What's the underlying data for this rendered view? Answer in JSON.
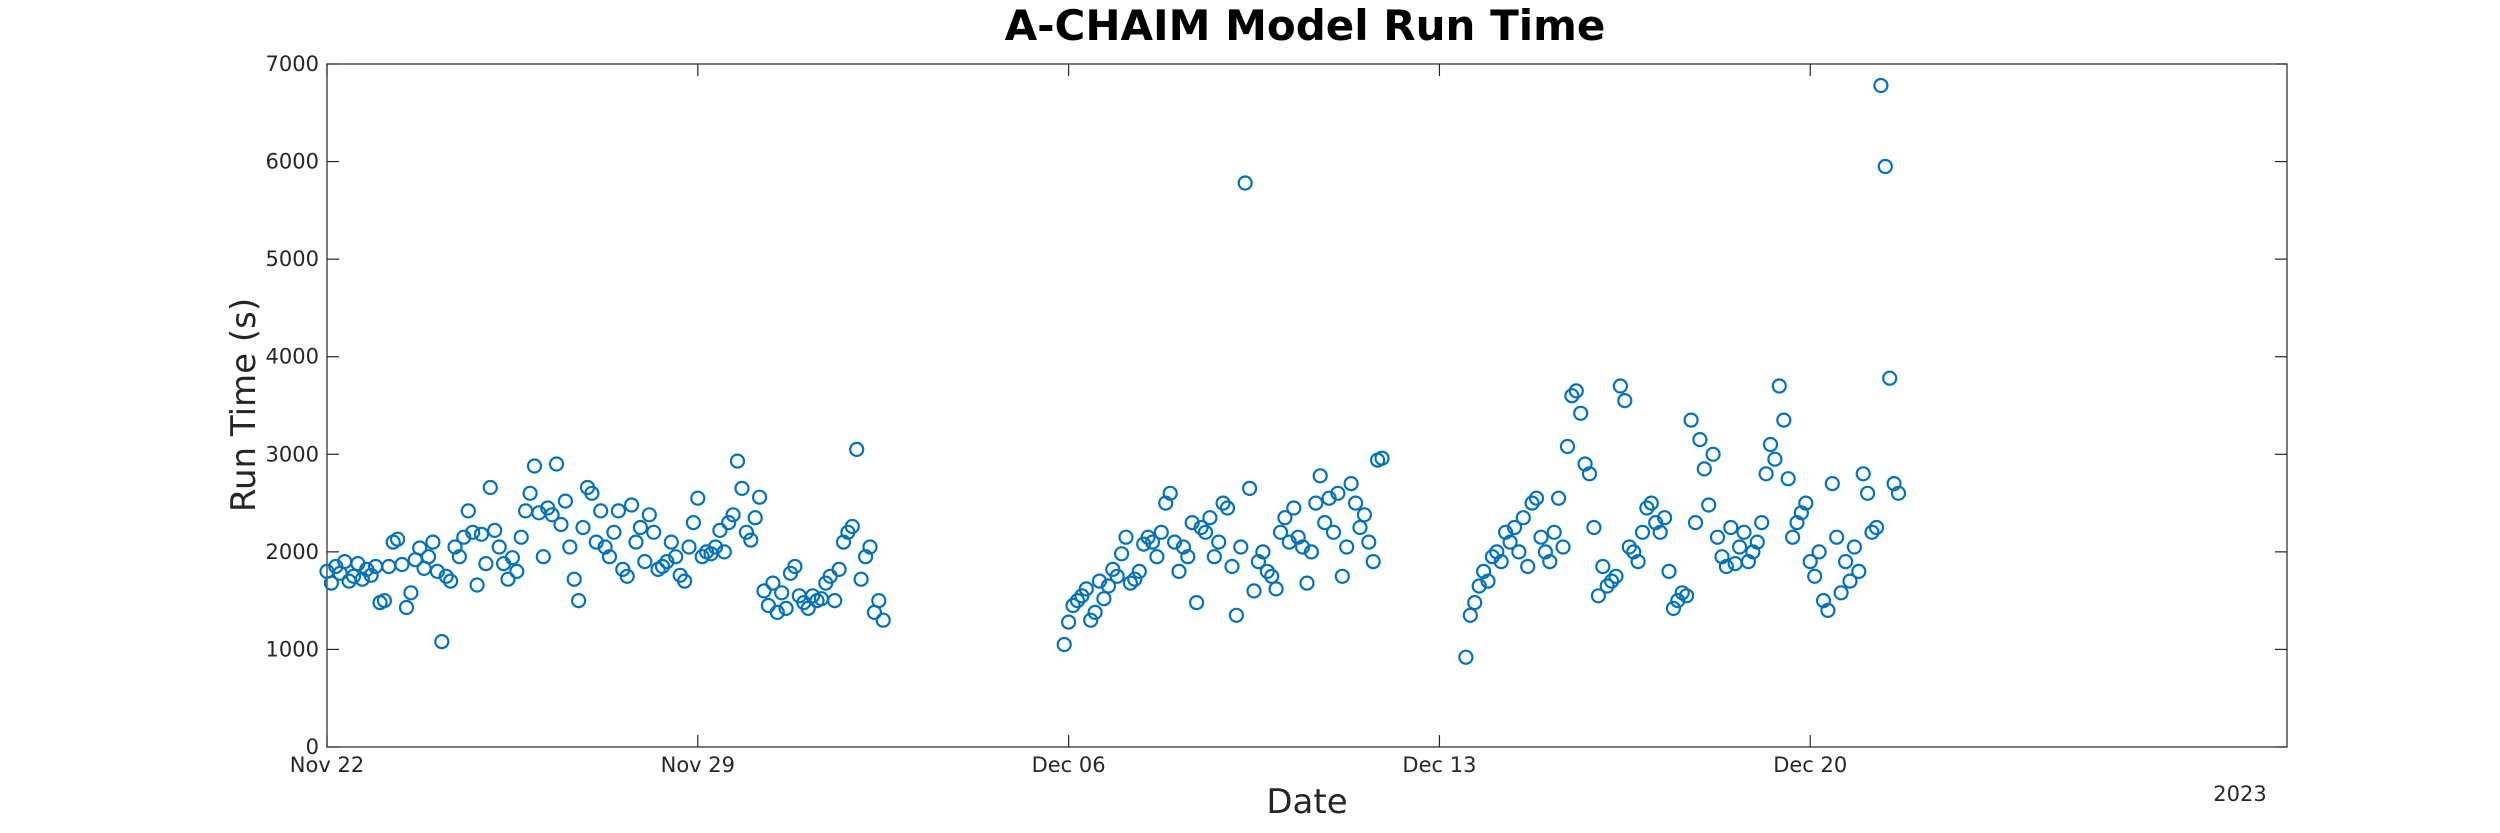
{
  "chart_data": {
    "type": "scatter",
    "title": "A-CHAIM Model Run Time",
    "xlabel": "Date",
    "ylabel": "Run Time (s)",
    "year_label": "2023",
    "x_range": [
      "2022-11-22",
      "2022-12-29"
    ],
    "ylim": [
      0,
      7000
    ],
    "y_ticks": [
      0,
      1000,
      2000,
      3000,
      4000,
      5000,
      6000,
      7000
    ],
    "x_ticks": [
      {
        "date": "2022-11-22",
        "label": "Nov 22"
      },
      {
        "date": "2022-11-29",
        "label": "Nov 29"
      },
      {
        "date": "2022-12-06",
        "label": "Dec 06"
      },
      {
        "date": "2022-12-13",
        "label": "Dec 13"
      },
      {
        "date": "2022-12-20",
        "label": "Dec 20"
      }
    ],
    "grid": false,
    "marker": "open circle",
    "color": "#0072BD",
    "points": [
      [
        "2022-11-22 00:00",
        1800
      ],
      [
        "2022-11-22 02:00",
        1680
      ],
      [
        "2022-11-22 04:00",
        1850
      ],
      [
        "2022-11-22 06:00",
        1780
      ],
      [
        "2022-11-22 08:00",
        1900
      ],
      [
        "2022-11-22 10:00",
        1700
      ],
      [
        "2022-11-22 12:00",
        1750
      ],
      [
        "2022-11-22 14:00",
        1880
      ],
      [
        "2022-11-22 16:00",
        1720
      ],
      [
        "2022-11-22 18:00",
        1820
      ],
      [
        "2022-11-22 20:00",
        1760
      ],
      [
        "2022-11-22 22:00",
        1850
      ],
      [
        "2022-11-23 00:00",
        1480
      ],
      [
        "2022-11-23 02:00",
        1500
      ],
      [
        "2022-11-23 04:00",
        1850
      ],
      [
        "2022-11-23 06:00",
        2100
      ],
      [
        "2022-11-23 08:00",
        2130
      ],
      [
        "2022-11-23 10:00",
        1870
      ],
      [
        "2022-11-23 12:00",
        1430
      ],
      [
        "2022-11-23 14:00",
        1580
      ],
      [
        "2022-11-23 16:00",
        1920
      ],
      [
        "2022-11-23 18:00",
        2040
      ],
      [
        "2022-11-23 20:00",
        1830
      ],
      [
        "2022-11-23 22:00",
        1950
      ],
      [
        "2022-11-24 00:00",
        2100
      ],
      [
        "2022-11-24 02:00",
        1800
      ],
      [
        "2022-11-24 04:00",
        1080
      ],
      [
        "2022-11-24 06:00",
        1750
      ],
      [
        "2022-11-24 08:00",
        1700
      ],
      [
        "2022-11-24 10:00",
        2050
      ],
      [
        "2022-11-24 12:00",
        1950
      ],
      [
        "2022-11-24 14:00",
        2150
      ],
      [
        "2022-11-24 16:00",
        2420
      ],
      [
        "2022-11-24 18:00",
        2200
      ],
      [
        "2022-11-24 20:00",
        1660
      ],
      [
        "2022-11-24 22:00",
        2180
      ],
      [
        "2022-11-25 00:00",
        1880
      ],
      [
        "2022-11-25 02:00",
        2660
      ],
      [
        "2022-11-25 04:00",
        2220
      ],
      [
        "2022-11-25 06:00",
        2050
      ],
      [
        "2022-11-25 08:00",
        1880
      ],
      [
        "2022-11-25 10:00",
        1720
      ],
      [
        "2022-11-25 12:00",
        1940
      ],
      [
        "2022-11-25 14:00",
        1800
      ],
      [
        "2022-11-25 16:00",
        2150
      ],
      [
        "2022-11-25 18:00",
        2420
      ],
      [
        "2022-11-25 20:00",
        2600
      ],
      [
        "2022-11-25 22:00",
        2880
      ],
      [
        "2022-11-26 00:00",
        2400
      ],
      [
        "2022-11-26 02:00",
        1950
      ],
      [
        "2022-11-26 04:00",
        2450
      ],
      [
        "2022-11-26 06:00",
        2380
      ],
      [
        "2022-11-26 08:00",
        2900
      ],
      [
        "2022-11-26 10:00",
        2280
      ],
      [
        "2022-11-26 12:00",
        2520
      ],
      [
        "2022-11-26 14:00",
        2050
      ],
      [
        "2022-11-26 16:00",
        1720
      ],
      [
        "2022-11-26 18:00",
        1500
      ],
      [
        "2022-11-26 20:00",
        2250
      ],
      [
        "2022-11-26 22:00",
        2660
      ],
      [
        "2022-11-27 00:00",
        2600
      ],
      [
        "2022-11-27 02:00",
        2100
      ],
      [
        "2022-11-27 04:00",
        2420
      ],
      [
        "2022-11-27 06:00",
        2050
      ],
      [
        "2022-11-27 08:00",
        1950
      ],
      [
        "2022-11-27 10:00",
        2200
      ],
      [
        "2022-11-27 12:00",
        2420
      ],
      [
        "2022-11-27 14:00",
        1820
      ],
      [
        "2022-11-27 16:00",
        1750
      ],
      [
        "2022-11-27 18:00",
        2480
      ],
      [
        "2022-11-27 20:00",
        2100
      ],
      [
        "2022-11-27 22:00",
        2250
      ],
      [
        "2022-11-28 00:00",
        1900
      ],
      [
        "2022-11-28 02:00",
        2380
      ],
      [
        "2022-11-28 04:00",
        2200
      ],
      [
        "2022-11-28 06:00",
        1820
      ],
      [
        "2022-11-28 08:00",
        1850
      ],
      [
        "2022-11-28 10:00",
        1900
      ],
      [
        "2022-11-28 12:00",
        2100
      ],
      [
        "2022-11-28 14:00",
        1950
      ],
      [
        "2022-11-28 16:00",
        1760
      ],
      [
        "2022-11-28 18:00",
        1700
      ],
      [
        "2022-11-28 20:00",
        2050
      ],
      [
        "2022-11-28 22:00",
        2300
      ],
      [
        "2022-11-29 00:00",
        2550
      ],
      [
        "2022-11-29 02:00",
        1950
      ],
      [
        "2022-11-29 04:00",
        2000
      ],
      [
        "2022-11-29 06:00",
        1980
      ],
      [
        "2022-11-29 08:00",
        2050
      ],
      [
        "2022-11-29 10:00",
        2220
      ],
      [
        "2022-11-29 12:00",
        2000
      ],
      [
        "2022-11-29 14:00",
        2300
      ],
      [
        "2022-11-29 16:00",
        2380
      ],
      [
        "2022-11-29 18:00",
        2930
      ],
      [
        "2022-11-29 20:00",
        2650
      ],
      [
        "2022-11-29 22:00",
        2200
      ],
      [
        "2022-11-30 00:00",
        2120
      ],
      [
        "2022-11-30 02:00",
        2350
      ],
      [
        "2022-11-30 04:00",
        2560
      ],
      [
        "2022-11-30 06:00",
        1600
      ],
      [
        "2022-11-30 08:00",
        1450
      ],
      [
        "2022-11-30 10:00",
        1680
      ],
      [
        "2022-11-30 12:00",
        1380
      ],
      [
        "2022-11-30 14:00",
        1580
      ],
      [
        "2022-11-30 16:00",
        1420
      ],
      [
        "2022-11-30 18:00",
        1780
      ],
      [
        "2022-11-30 20:00",
        1850
      ],
      [
        "2022-11-30 22:00",
        1550
      ],
      [
        "2022-12-01 00:00",
        1480
      ],
      [
        "2022-12-01 02:00",
        1420
      ],
      [
        "2022-12-01 04:00",
        1550
      ],
      [
        "2022-12-01 06:00",
        1500
      ],
      [
        "2022-12-01 08:00",
        1520
      ],
      [
        "2022-12-01 10:00",
        1680
      ],
      [
        "2022-12-01 12:00",
        1750
      ],
      [
        "2022-12-01 14:00",
        1500
      ],
      [
        "2022-12-01 16:00",
        1820
      ],
      [
        "2022-12-01 18:00",
        2100
      ],
      [
        "2022-12-01 20:00",
        2200
      ],
      [
        "2022-12-01 22:00",
        2260
      ],
      [
        "2022-12-02 00:00",
        3050
      ],
      [
        "2022-12-02 02:00",
        1720
      ],
      [
        "2022-12-02 04:00",
        1950
      ],
      [
        "2022-12-02 06:00",
        2050
      ],
      [
        "2022-12-02 08:00",
        1380
      ],
      [
        "2022-12-02 10:00",
        1500
      ],
      [
        "2022-12-02 12:00",
        1300
      ],
      [
        "2022-12-05 22:00",
        1050
      ],
      [
        "2022-12-06 00:00",
        1280
      ],
      [
        "2022-12-06 02:00",
        1450
      ],
      [
        "2022-12-06 04:00",
        1500
      ],
      [
        "2022-12-06 06:00",
        1550
      ],
      [
        "2022-12-06 08:00",
        1620
      ],
      [
        "2022-12-06 10:00",
        1300
      ],
      [
        "2022-12-06 12:00",
        1380
      ],
      [
        "2022-12-06 14:00",
        1700
      ],
      [
        "2022-12-06 16:00",
        1520
      ],
      [
        "2022-12-06 18:00",
        1650
      ],
      [
        "2022-12-06 20:00",
        1820
      ],
      [
        "2022-12-06 22:00",
        1750
      ],
      [
        "2022-12-07 00:00",
        1980
      ],
      [
        "2022-12-07 02:00",
        2150
      ],
      [
        "2022-12-07 04:00",
        1680
      ],
      [
        "2022-12-07 06:00",
        1720
      ],
      [
        "2022-12-07 08:00",
        1800
      ],
      [
        "2022-12-07 10:00",
        2080
      ],
      [
        "2022-12-07 12:00",
        2150
      ],
      [
        "2022-12-07 14:00",
        2100
      ],
      [
        "2022-12-07 16:00",
        1950
      ],
      [
        "2022-12-07 18:00",
        2200
      ],
      [
        "2022-12-07 20:00",
        2500
      ],
      [
        "2022-12-07 22:00",
        2600
      ],
      [
        "2022-12-08 00:00",
        2100
      ],
      [
        "2022-12-08 02:00",
        1800
      ],
      [
        "2022-12-08 04:00",
        2050
      ],
      [
        "2022-12-08 06:00",
        1950
      ],
      [
        "2022-12-08 08:00",
        2300
      ],
      [
        "2022-12-08 10:00",
        1480
      ],
      [
        "2022-12-08 12:00",
        2250
      ],
      [
        "2022-12-08 14:00",
        2200
      ],
      [
        "2022-12-08 16:00",
        2350
      ],
      [
        "2022-12-08 18:00",
        1950
      ],
      [
        "2022-12-08 20:00",
        2100
      ],
      [
        "2022-12-08 22:00",
        2500
      ],
      [
        "2022-12-09 00:00",
        2450
      ],
      [
        "2022-12-09 02:00",
        1850
      ],
      [
        "2022-12-09 04:00",
        1350
      ],
      [
        "2022-12-09 06:00",
        2050
      ],
      [
        "2022-12-09 08:00",
        5780
      ],
      [
        "2022-12-09 10:00",
        2650
      ],
      [
        "2022-12-09 12:00",
        1600
      ],
      [
        "2022-12-09 14:00",
        1900
      ],
      [
        "2022-12-09 16:00",
        2000
      ],
      [
        "2022-12-09 18:00",
        1800
      ],
      [
        "2022-12-09 20:00",
        1750
      ],
      [
        "2022-12-09 22:00",
        1620
      ],
      [
        "2022-12-10 00:00",
        2200
      ],
      [
        "2022-12-10 02:00",
        2350
      ],
      [
        "2022-12-10 04:00",
        2100
      ],
      [
        "2022-12-10 06:00",
        2450
      ],
      [
        "2022-12-10 08:00",
        2150
      ],
      [
        "2022-12-10 10:00",
        2050
      ],
      [
        "2022-12-10 12:00",
        1680
      ],
      [
        "2022-12-10 14:00",
        2000
      ],
      [
        "2022-12-10 16:00",
        2500
      ],
      [
        "2022-12-10 18:00",
        2780
      ],
      [
        "2022-12-10 20:00",
        2300
      ],
      [
        "2022-12-10 22:00",
        2550
      ],
      [
        "2022-12-11 00:00",
        2200
      ],
      [
        "2022-12-11 02:00",
        2600
      ],
      [
        "2022-12-11 04:00",
        1750
      ],
      [
        "2022-12-11 06:00",
        2050
      ],
      [
        "2022-12-11 08:00",
        2700
      ],
      [
        "2022-12-11 10:00",
        2500
      ],
      [
        "2022-12-11 12:00",
        2250
      ],
      [
        "2022-12-11 14:00",
        2380
      ],
      [
        "2022-12-11 16:00",
        2100
      ],
      [
        "2022-12-11 18:00",
        1900
      ],
      [
        "2022-12-11 20:00",
        2940
      ],
      [
        "2022-12-11 22:00",
        2960
      ],
      [
        "2022-12-13 12:00",
        920
      ],
      [
        "2022-12-13 14:00",
        1350
      ],
      [
        "2022-12-13 16:00",
        1480
      ],
      [
        "2022-12-13 18:00",
        1650
      ],
      [
        "2022-12-13 20:00",
        1800
      ],
      [
        "2022-12-13 22:00",
        1700
      ],
      [
        "2022-12-14 00:00",
        1950
      ],
      [
        "2022-12-14 02:00",
        2000
      ],
      [
        "2022-12-14 04:00",
        1900
      ],
      [
        "2022-12-14 06:00",
        2200
      ],
      [
        "2022-12-14 08:00",
        2100
      ],
      [
        "2022-12-14 10:00",
        2250
      ],
      [
        "2022-12-14 12:00",
        2000
      ],
      [
        "2022-12-14 14:00",
        2350
      ],
      [
        "2022-12-14 16:00",
        1850
      ],
      [
        "2022-12-14 18:00",
        2500
      ],
      [
        "2022-12-14 20:00",
        2550
      ],
      [
        "2022-12-14 22:00",
        2150
      ],
      [
        "2022-12-15 00:00",
        2000
      ],
      [
        "2022-12-15 02:00",
        1900
      ],
      [
        "2022-12-15 04:00",
        2200
      ],
      [
        "2022-12-15 06:00",
        2550
      ],
      [
        "2022-12-15 08:00",
        2050
      ],
      [
        "2022-12-15 10:00",
        3080
      ],
      [
        "2022-12-15 12:00",
        3600
      ],
      [
        "2022-12-15 14:00",
        3650
      ],
      [
        "2022-12-15 16:00",
        3420
      ],
      [
        "2022-12-15 18:00",
        2900
      ],
      [
        "2022-12-15 20:00",
        2800
      ],
      [
        "2022-12-15 22:00",
        2250
      ],
      [
        "2022-12-16 00:00",
        1550
      ],
      [
        "2022-12-16 02:00",
        1850
      ],
      [
        "2022-12-16 04:00",
        1650
      ],
      [
        "2022-12-16 06:00",
        1700
      ],
      [
        "2022-12-16 08:00",
        1750
      ],
      [
        "2022-12-16 10:00",
        3700
      ],
      [
        "2022-12-16 12:00",
        3550
      ],
      [
        "2022-12-16 14:00",
        2050
      ],
      [
        "2022-12-16 16:00",
        2000
      ],
      [
        "2022-12-16 18:00",
        1900
      ],
      [
        "2022-12-16 20:00",
        2200
      ],
      [
        "2022-12-16 22:00",
        2450
      ],
      [
        "2022-12-17 00:00",
        2500
      ],
      [
        "2022-12-17 02:00",
        2300
      ],
      [
        "2022-12-17 04:00",
        2200
      ],
      [
        "2022-12-17 06:00",
        2350
      ],
      [
        "2022-12-17 08:00",
        1800
      ],
      [
        "2022-12-17 10:00",
        1420
      ],
      [
        "2022-12-17 12:00",
        1500
      ],
      [
        "2022-12-17 14:00",
        1580
      ],
      [
        "2022-12-17 16:00",
        1550
      ],
      [
        "2022-12-17 18:00",
        3350
      ],
      [
        "2022-12-17 20:00",
        2300
      ],
      [
        "2022-12-17 22:00",
        3150
      ],
      [
        "2022-12-18 00:00",
        2850
      ],
      [
        "2022-12-18 02:00",
        2480
      ],
      [
        "2022-12-18 04:00",
        3000
      ],
      [
        "2022-12-18 06:00",
        2150
      ],
      [
        "2022-12-18 08:00",
        1950
      ],
      [
        "2022-12-18 10:00",
        1850
      ],
      [
        "2022-12-18 12:00",
        2250
      ],
      [
        "2022-12-18 14:00",
        1880
      ],
      [
        "2022-12-18 16:00",
        2050
      ],
      [
        "2022-12-18 18:00",
        2200
      ],
      [
        "2022-12-18 20:00",
        1900
      ],
      [
        "2022-12-18 22:00",
        2000
      ],
      [
        "2022-12-19 00:00",
        2100
      ],
      [
        "2022-12-19 02:00",
        2300
      ],
      [
        "2022-12-19 04:00",
        2800
      ],
      [
        "2022-12-19 06:00",
        3100
      ],
      [
        "2022-12-19 08:00",
        2950
      ],
      [
        "2022-12-19 10:00",
        3700
      ],
      [
        "2022-12-19 12:00",
        3350
      ],
      [
        "2022-12-19 14:00",
        2750
      ],
      [
        "2022-12-19 16:00",
        2150
      ],
      [
        "2022-12-19 18:00",
        2300
      ],
      [
        "2022-12-19 20:00",
        2400
      ],
      [
        "2022-12-19 22:00",
        2500
      ],
      [
        "2022-12-20 00:00",
        1900
      ],
      [
        "2022-12-20 02:00",
        1750
      ],
      [
        "2022-12-20 04:00",
        2000
      ],
      [
        "2022-12-20 06:00",
        1500
      ],
      [
        "2022-12-20 08:00",
        1400
      ],
      [
        "2022-12-20 10:00",
        2700
      ],
      [
        "2022-12-20 12:00",
        2150
      ],
      [
        "2022-12-20 14:00",
        1580
      ],
      [
        "2022-12-20 16:00",
        1900
      ],
      [
        "2022-12-20 18:00",
        1700
      ],
      [
        "2022-12-20 20:00",
        2050
      ],
      [
        "2022-12-20 22:00",
        1800
      ],
      [
        "2022-12-21 00:00",
        2800
      ],
      [
        "2022-12-21 02:00",
        2600
      ],
      [
        "2022-12-21 04:00",
        2200
      ],
      [
        "2022-12-21 06:00",
        2250
      ],
      [
        "2022-12-21 08:00",
        6780
      ],
      [
        "2022-12-21 10:00",
        5950
      ],
      [
        "2022-12-21 12:00",
        3780
      ],
      [
        "2022-12-21 14:00",
        2700
      ],
      [
        "2022-12-21 16:00",
        2600
      ]
    ]
  }
}
